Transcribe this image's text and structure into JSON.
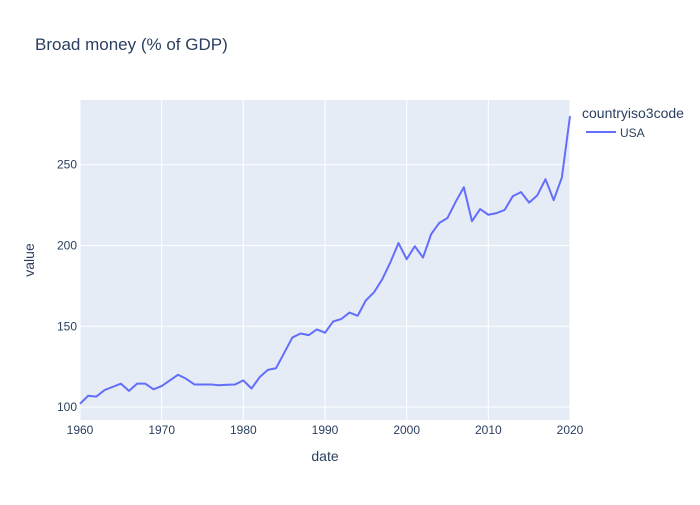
{
  "chart_data": {
    "type": "line",
    "title": "Broad money (% of GDP)",
    "xlabel": "date",
    "ylabel": "value",
    "xlim": [
      1960,
      2020
    ],
    "ylim": [
      92,
      290
    ],
    "x_ticks": [
      1960,
      1970,
      1980,
      1990,
      2000,
      2010,
      2020
    ],
    "y_ticks": [
      100,
      150,
      200,
      250
    ],
    "grid": true,
    "legend": {
      "title": "countryiso3code",
      "placement": "top-right outside"
    },
    "colors": {
      "plot_background": "#E5ECF6",
      "gridline": "#ffffff",
      "text": "#2a3f5f",
      "series_line": "#636EFA"
    },
    "x": [
      1960,
      1961,
      1962,
      1963,
      1964,
      1965,
      1966,
      1967,
      1968,
      1969,
      1970,
      1971,
      1972,
      1973,
      1974,
      1975,
      1976,
      1977,
      1978,
      1979,
      1980,
      1981,
      1982,
      1983,
      1984,
      1985,
      1986,
      1987,
      1988,
      1989,
      1990,
      1991,
      1992,
      1993,
      1994,
      1995,
      1996,
      1997,
      1998,
      1999,
      2000,
      2001,
      2002,
      2003,
      2004,
      2005,
      2006,
      2007,
      2008,
      2009,
      2010,
      2011,
      2012,
      2013,
      2014,
      2015,
      2016,
      2017,
      2018,
      2019,
      2020
    ],
    "series": [
      {
        "name": "USA",
        "values": [
          102,
          107,
          106.5,
          110.5,
          112.5,
          114.5,
          110,
          114.5,
          114.5,
          111,
          113,
          116.5,
          120,
          117.5,
          114,
          114,
          114,
          113.5,
          113.8,
          114,
          116.5,
          111.5,
          118.5,
          123,
          124,
          133.5,
          143,
          145.5,
          144.5,
          148,
          146,
          153,
          154.5,
          158.5,
          156.5,
          166,
          171,
          179,
          189.5,
          201.5,
          191.5,
          199.5,
          192.5,
          207,
          214,
          217,
          227,
          236,
          215,
          222.5,
          219,
          220,
          222,
          230.5,
          233,
          226.5,
          231,
          241,
          228,
          242,
          280
        ]
      }
    ]
  }
}
